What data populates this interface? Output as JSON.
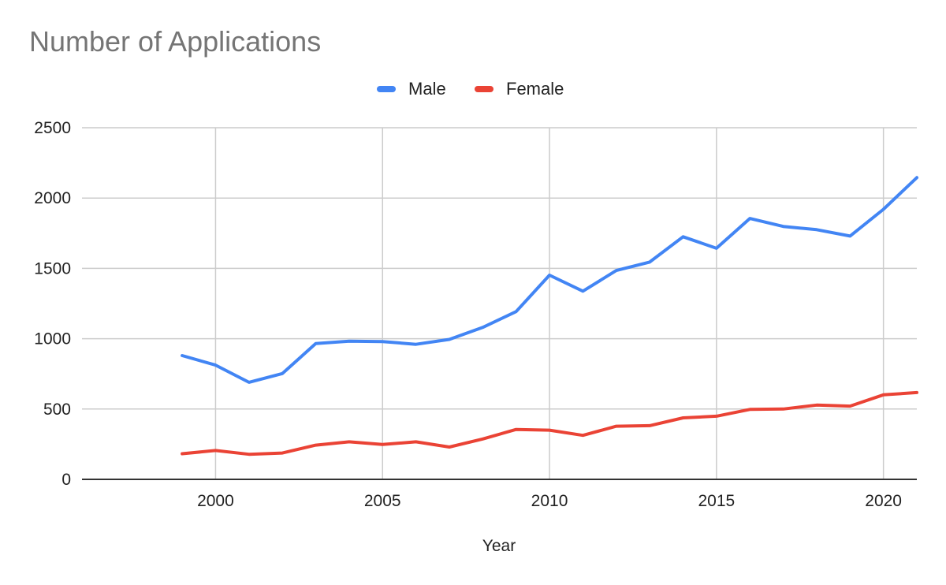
{
  "chart_data": {
    "type": "line",
    "title": "Number of Applications",
    "xlabel": "Year",
    "ylabel": "",
    "xlim": [
      1996,
      2021
    ],
    "ylim": [
      0,
      2500
    ],
    "grid": true,
    "legend_position": "top",
    "x_ticks": [
      2000,
      2005,
      2010,
      2015,
      2020
    ],
    "y_ticks": [
      0,
      500,
      1000,
      1500,
      2000,
      2500
    ],
    "x": [
      1999,
      2000,
      2001,
      2002,
      2003,
      2004,
      2005,
      2006,
      2007,
      2008,
      2009,
      2010,
      2011,
      2012,
      2013,
      2014,
      2015,
      2016,
      2017,
      2018,
      2019,
      2020,
      2021
    ],
    "series": [
      {
        "name": "Male",
        "color": "#4285f4",
        "values": [
          880,
          812,
          690,
          752,
          965,
          982,
          980,
          960,
          995,
          1080,
          1193,
          1452,
          1338,
          1485,
          1545,
          1725,
          1643,
          1855,
          1798,
          1775,
          1730,
          1920,
          2145
        ]
      },
      {
        "name": "Female",
        "color": "#ea4335",
        "values": [
          182,
          205,
          178,
          187,
          243,
          267,
          248,
          267,
          230,
          287,
          355,
          350,
          313,
          378,
          382,
          437,
          449,
          497,
          500,
          528,
          521,
          601,
          617
        ]
      }
    ]
  }
}
